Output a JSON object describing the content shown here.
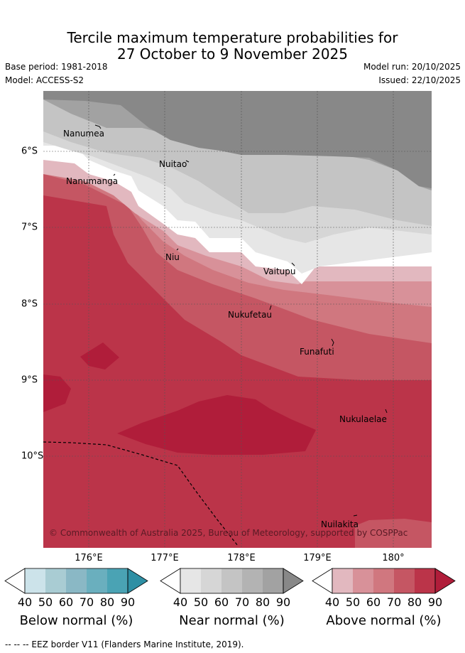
{
  "title": {
    "line1": "Tercile maximum temperature probabilities for",
    "line2": "27 October to 9 November 2025"
  },
  "meta": {
    "base_period": "Base period: 1981-2018",
    "model": "Model: ACCESS-S2",
    "model_run": "Model run: 20/10/2025",
    "issued": "Issued: 22/10/2025"
  },
  "axes": {
    "lon_labels": [
      "176°E",
      "177°E",
      "178°E",
      "179°E",
      "180°"
    ],
    "lat_labels": [
      "6°S",
      "7°S",
      "8°S",
      "9°S",
      "10°S"
    ]
  },
  "places": [
    {
      "name": "Nanumea"
    },
    {
      "name": "Nuitao"
    },
    {
      "name": "Nanumanga"
    },
    {
      "name": "Niu"
    },
    {
      "name": "Vaitupu"
    },
    {
      "name": "Nukufetau"
    },
    {
      "name": "Funafuti"
    },
    {
      "name": "Nukulaelae"
    },
    {
      "name": "Nuilakita"
    }
  ],
  "copyright": "© Commonwealth of Australia 2025, Bureau of Meteorology, supported by COSPPac",
  "colorbars": [
    {
      "label": "Below normal (%)",
      "ticks": [
        "40",
        "50",
        "60",
        "70",
        "80",
        "90"
      ],
      "colors": [
        "#ffffff",
        "#cce3ea",
        "#a9ccd3",
        "#8ab8c5",
        "#6aafbe",
        "#4aa3b4",
        "#2e8fa4"
      ]
    },
    {
      "label": "Near normal (%)",
      "ticks": [
        "40",
        "50",
        "60",
        "70",
        "80",
        "90"
      ],
      "colors": [
        "#ffffff",
        "#e6e6e6",
        "#d6d6d6",
        "#c4c4c4",
        "#b3b3b3",
        "#a2a2a2",
        "#888888"
      ]
    },
    {
      "label": "Above normal (%)",
      "ticks": [
        "40",
        "50",
        "60",
        "70",
        "80",
        "90"
      ],
      "colors": [
        "#ffffff",
        "#e2b8bf",
        "#d89199",
        "#d0777f",
        "#c55663",
        "#bb3449",
        "#b01d3a"
      ]
    }
  ],
  "footer": "--  --  -- EEZ border V11 (Flanders Marine Institute, 2019)."
}
